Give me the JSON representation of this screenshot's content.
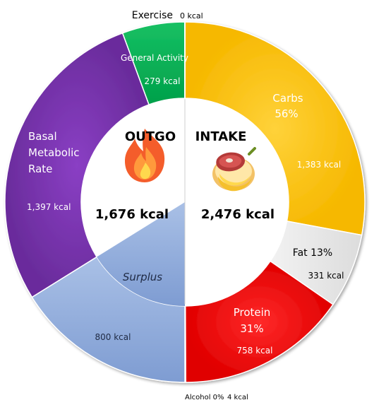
{
  "chart_data": {
    "type": "donut",
    "title": "",
    "total_unit": "kcal",
    "outgo": {
      "heading": "OUTGO",
      "total_label": "1,676 kcal",
      "total_value": 1676,
      "icon": "flame-icon",
      "segments": [
        {
          "key": "exercise",
          "name": "Exercise",
          "value": 0,
          "value_label": "0 kcal",
          "color": "#00B050"
        },
        {
          "key": "general",
          "name": "General Activity",
          "value": 279,
          "value_label": "279 kcal",
          "color": "#00B050"
        },
        {
          "key": "bmr",
          "name": "Basal Metabolic Rate",
          "value": 1397,
          "value_label": "1,397 kcal",
          "color": "#7030A0"
        },
        {
          "key": "surplus",
          "name": "Surplus",
          "value": 800,
          "value_label": "800 kcal",
          "color": "#8EA9DB"
        }
      ]
    },
    "intake": {
      "heading": "INTAKE",
      "total_label": "2,476 kcal",
      "total_value": 2476,
      "icon": "food-plate-icon",
      "segments": [
        {
          "key": "carbs",
          "name": "Carbs",
          "percent_label": "56%",
          "value": 1383,
          "value_label": "1,383 kcal",
          "color": "#FFC000"
        },
        {
          "key": "fat",
          "name": "Fat",
          "percent_label": "13%",
          "value": 331,
          "value_label": "331 kcal",
          "color": "#E7E6E6"
        },
        {
          "key": "protein",
          "name": "Protein",
          "percent_label": "31%",
          "value": 758,
          "value_label": "758 kcal",
          "color": "#FF0000"
        },
        {
          "key": "alcohol",
          "name": "Alcohol",
          "percent_label": "0%",
          "value": 4,
          "value_label": "4 kcal",
          "color": "#7F7F7F"
        }
      ]
    }
  }
}
